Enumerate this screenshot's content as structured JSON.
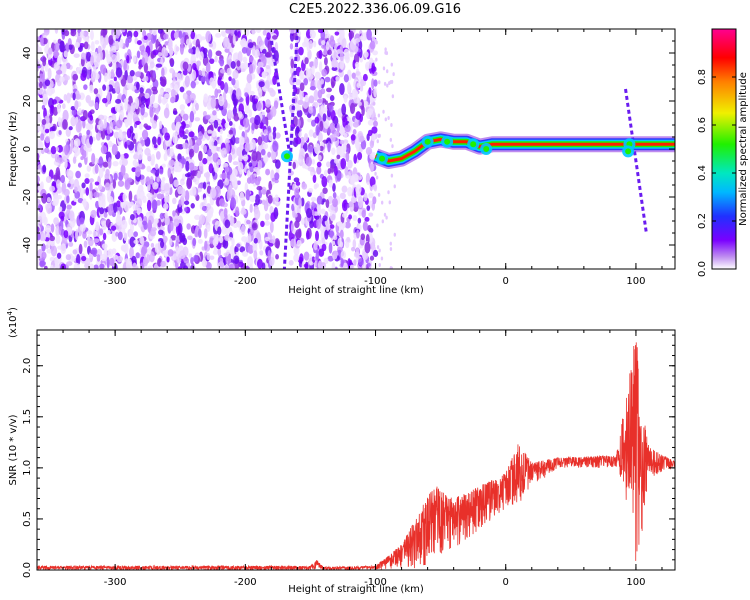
{
  "title": "C2E5.2022.336.06.09.G16",
  "chart_data": [
    {
      "type": "heatmap",
      "xlabel": "Height of straight line (km)",
      "ylabel": "Frequency (Hz)",
      "xlim": [
        -360,
        130
      ],
      "ylim": [
        -50,
        50
      ],
      "xticks": [
        -300,
        -200,
        -100,
        0,
        100
      ],
      "yticks": [
        -40,
        -20,
        0,
        20,
        40
      ],
      "colorbar": {
        "label": "Normalized spectral amplitude",
        "range": [
          0,
          1
        ],
        "ticks": [
          0.0,
          0.2,
          0.4,
          0.6,
          0.8
        ],
        "colormap": "rainbow (purple-blue-cyan-green-yellow-red-magenta)"
      },
      "features": {
        "noise_region_x": [
          -360,
          -100
        ],
        "gap_x": [
          -175,
          -165
        ],
        "carrier_curve": [
          {
            "x": -100,
            "y": -3
          },
          {
            "x": -90,
            "y": -5
          },
          {
            "x": -80,
            "y": -4
          },
          {
            "x": -70,
            "y": -1
          },
          {
            "x": -60,
            "y": 3
          },
          {
            "x": -50,
            "y": 4
          },
          {
            "x": -40,
            "y": 3
          },
          {
            "x": -30,
            "y": 3
          },
          {
            "x": -20,
            "y": 1
          },
          {
            "x": -10,
            "y": 2
          },
          {
            "x": 0,
            "y": 2
          },
          {
            "x": 30,
            "y": 2
          },
          {
            "x": 60,
            "y": 2
          },
          {
            "x": 90,
            "y": 2
          },
          {
            "x": 130,
            "y": 2
          }
        ],
        "streaks": [
          {
            "x0": -180,
            "y0": 45,
            "x1": -165,
            "y1": -5
          },
          {
            "x0": -160,
            "y0": 50,
            "x1": -170,
            "y1": -50
          },
          {
            "x0": 92,
            "y0": 25,
            "x1": 108,
            "y1": -35
          }
        ]
      }
    },
    {
      "type": "line",
      "xlabel": "Height of straight line (km)",
      "ylabel": "SNR (10 * v/v)",
      "y_multiplier_label": "(x10",
      "y_multiplier_exp": "4",
      "y_multiplier_close": ")",
      "xlim": [
        -360,
        130
      ],
      "ylim": [
        0,
        2.35
      ],
      "xticks": [
        -300,
        -200,
        -100,
        0,
        100
      ],
      "yticks": [
        0.0,
        0.5,
        1.0,
        1.5,
        2.0
      ],
      "series": [
        {
          "color": "#e8302a",
          "envelope": [
            {
              "x": -360,
              "lo": 0.0,
              "hi": 0.04
            },
            {
              "x": -150,
              "lo": 0.0,
              "hi": 0.04
            },
            {
              "x": -145,
              "lo": 0.0,
              "hi": 0.1
            },
            {
              "x": -140,
              "lo": 0.0,
              "hi": 0.03
            },
            {
              "x": -100,
              "lo": 0.0,
              "hi": 0.04
            },
            {
              "x": -80,
              "lo": 0.02,
              "hi": 0.25
            },
            {
              "x": -65,
              "lo": 0.0,
              "hi": 0.6
            },
            {
              "x": -55,
              "lo": 0.1,
              "hi": 0.85
            },
            {
              "x": -40,
              "lo": 0.2,
              "hi": 0.7
            },
            {
              "x": -20,
              "lo": 0.4,
              "hi": 0.82
            },
            {
              "x": 0,
              "lo": 0.6,
              "hi": 0.95
            },
            {
              "x": 10,
              "lo": 0.65,
              "hi": 1.25
            },
            {
              "x": 20,
              "lo": 0.8,
              "hi": 1.05
            },
            {
              "x": 40,
              "lo": 1.0,
              "hi": 1.1
            },
            {
              "x": 85,
              "lo": 1.0,
              "hi": 1.12
            },
            {
              "x": 95,
              "lo": 0.5,
              "hi": 1.9
            },
            {
              "x": 100,
              "lo": 0.0,
              "hi": 2.35
            },
            {
              "x": 105,
              "lo": 0.4,
              "hi": 1.6
            },
            {
              "x": 110,
              "lo": 0.9,
              "hi": 1.2
            },
            {
              "x": 130,
              "lo": 1.0,
              "hi": 1.06
            }
          ]
        }
      ]
    }
  ]
}
